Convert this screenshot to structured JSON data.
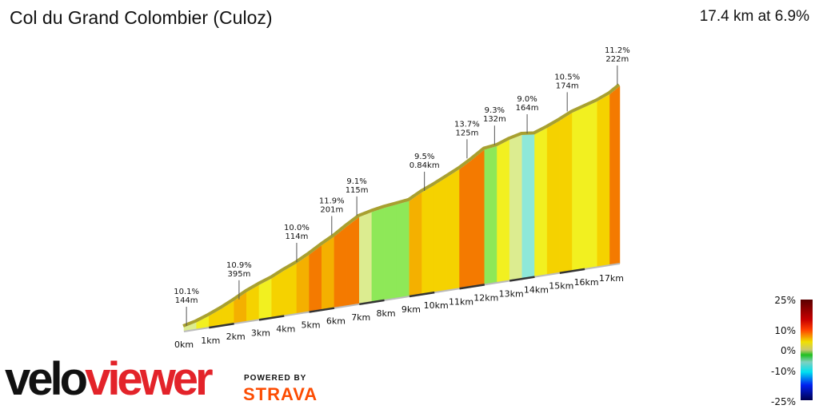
{
  "header": {
    "title": "Col du Grand Colombier (Culoz)",
    "summary": "17.4 km at 6.9%"
  },
  "branding": {
    "logo_part1": "velo",
    "logo_part2": "viewer",
    "powered_by": "POWERED BY",
    "strava": "STRAVA"
  },
  "chart_data": {
    "type": "area",
    "title": "Col du Grand Colombier (Culoz)",
    "distance_km": 17.4,
    "avg_gradient_pct": 6.9,
    "segment_length_km": 0.5,
    "segment_gradients_pct": [
      4,
      6,
      7,
      8,
      9,
      7,
      6,
      8,
      7,
      9,
      10,
      9,
      11,
      10,
      4,
      3,
      2,
      2,
      9,
      7,
      8,
      8,
      10,
      11,
      2,
      6,
      4,
      -2,
      6,
      7,
      8,
      5,
      5,
      7,
      11
    ],
    "x_ticks": [
      "0km",
      "1km",
      "2km",
      "3km",
      "4km",
      "5km",
      "6km",
      "7km",
      "8km",
      "9km",
      "10km",
      "11km",
      "12km",
      "13km",
      "14km",
      "15km",
      "16km",
      "17km"
    ],
    "annotations": [
      {
        "km": 0.1,
        "gradient": "10.1%",
        "length": "144m"
      },
      {
        "km": 2.2,
        "gradient": "10.9%",
        "length": "395m"
      },
      {
        "km": 4.5,
        "gradient": "10.0%",
        "length": "114m"
      },
      {
        "km": 5.9,
        "gradient": "11.9%",
        "length": "201m"
      },
      {
        "km": 6.9,
        "gradient": "9.1%",
        "length": "115m"
      },
      {
        "km": 9.6,
        "gradient": "9.5%",
        "length": "0.84km"
      },
      {
        "km": 11.3,
        "gradient": "13.7%",
        "length": "125m"
      },
      {
        "km": 12.4,
        "gradient": "9.3%",
        "length": "132m"
      },
      {
        "km": 13.7,
        "gradient": "9.0%",
        "length": "164m"
      },
      {
        "km": 15.3,
        "gradient": "10.5%",
        "length": "174m"
      },
      {
        "km": 17.3,
        "gradient": "11.2%",
        "length": "222m"
      }
    ],
    "legend": {
      "labels": [
        "25%",
        "10%",
        "0%",
        "-10%",
        "-25%"
      ],
      "values": [
        25,
        10,
        0,
        -10,
        -25
      ]
    }
  }
}
